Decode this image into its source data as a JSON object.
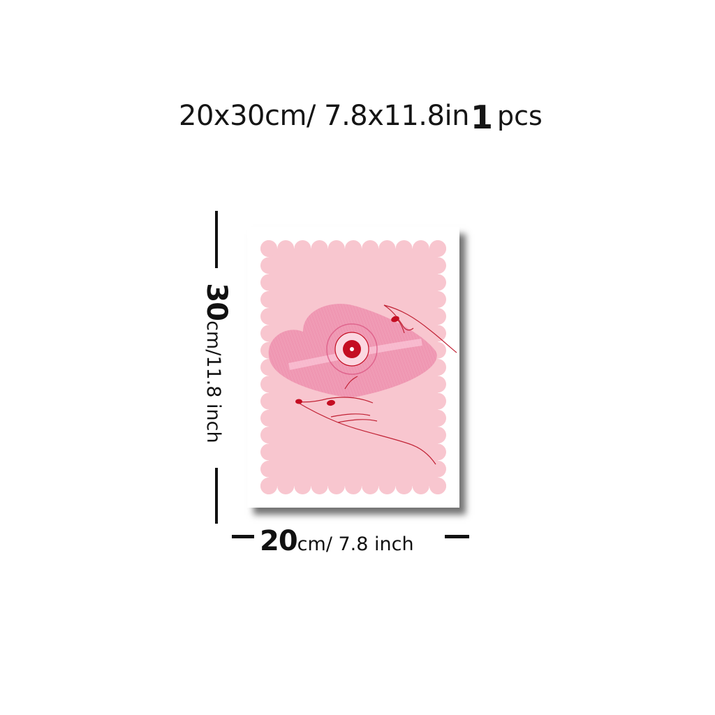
{
  "headline": {
    "size": "20x30cm/ 7.8x11.8in",
    "qty_number": "1",
    "qty_unit": "pcs"
  },
  "height_label": {
    "number": "30",
    "unit": "cm/11.8 inch"
  },
  "width_label": {
    "number": "20",
    "unit": "cm/ 7.8 inch"
  },
  "colors": {
    "scallop_pink": "#f8c6cf",
    "heart_pink": "#f09bb5",
    "heart_dark": "#e9769c",
    "label_red": "#c40d22",
    "hand_line": "#c12235",
    "frame_white": "#ffffff"
  },
  "artwork": {
    "icons": [
      "scalloped-frame",
      "heart-vinyl-record",
      "hands"
    ]
  }
}
